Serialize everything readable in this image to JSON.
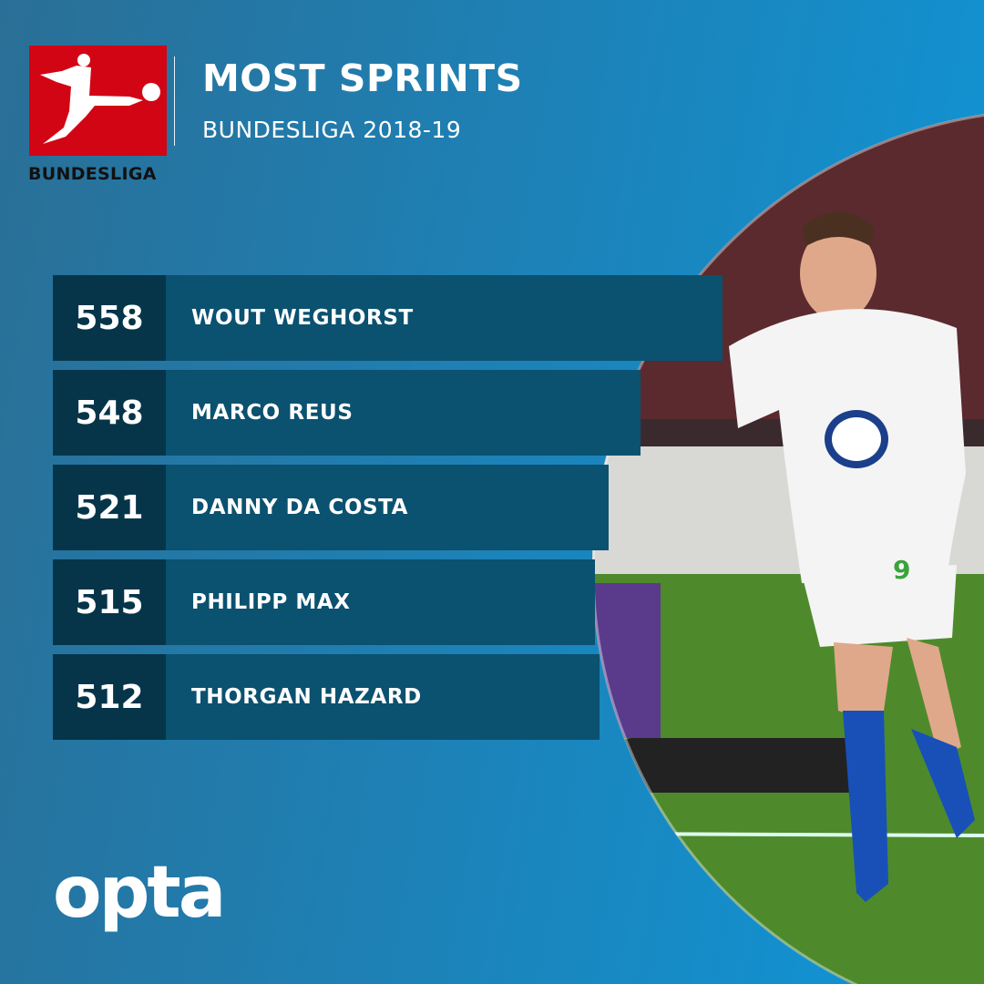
{
  "brand": {
    "league_logo_text": "BUNDESLIGA",
    "league_red": "#d20515",
    "footer_logo": "opta"
  },
  "header": {
    "title": "MOST SPRINTS",
    "subtitle": "BUNDESLIGA 2018-19"
  },
  "leaderboard": [
    {
      "value": "558",
      "player": "WOUT WEGHORST"
    },
    {
      "value": "548",
      "player": "MARCO REUS"
    },
    {
      "value": "521",
      "player": "DANNY DA COSTA"
    },
    {
      "value": "515",
      "player": "PHILIPP MAX"
    },
    {
      "value": "512",
      "player": "THORGAN HAZARD"
    }
  ],
  "photo": {
    "shirt_number": "9"
  }
}
